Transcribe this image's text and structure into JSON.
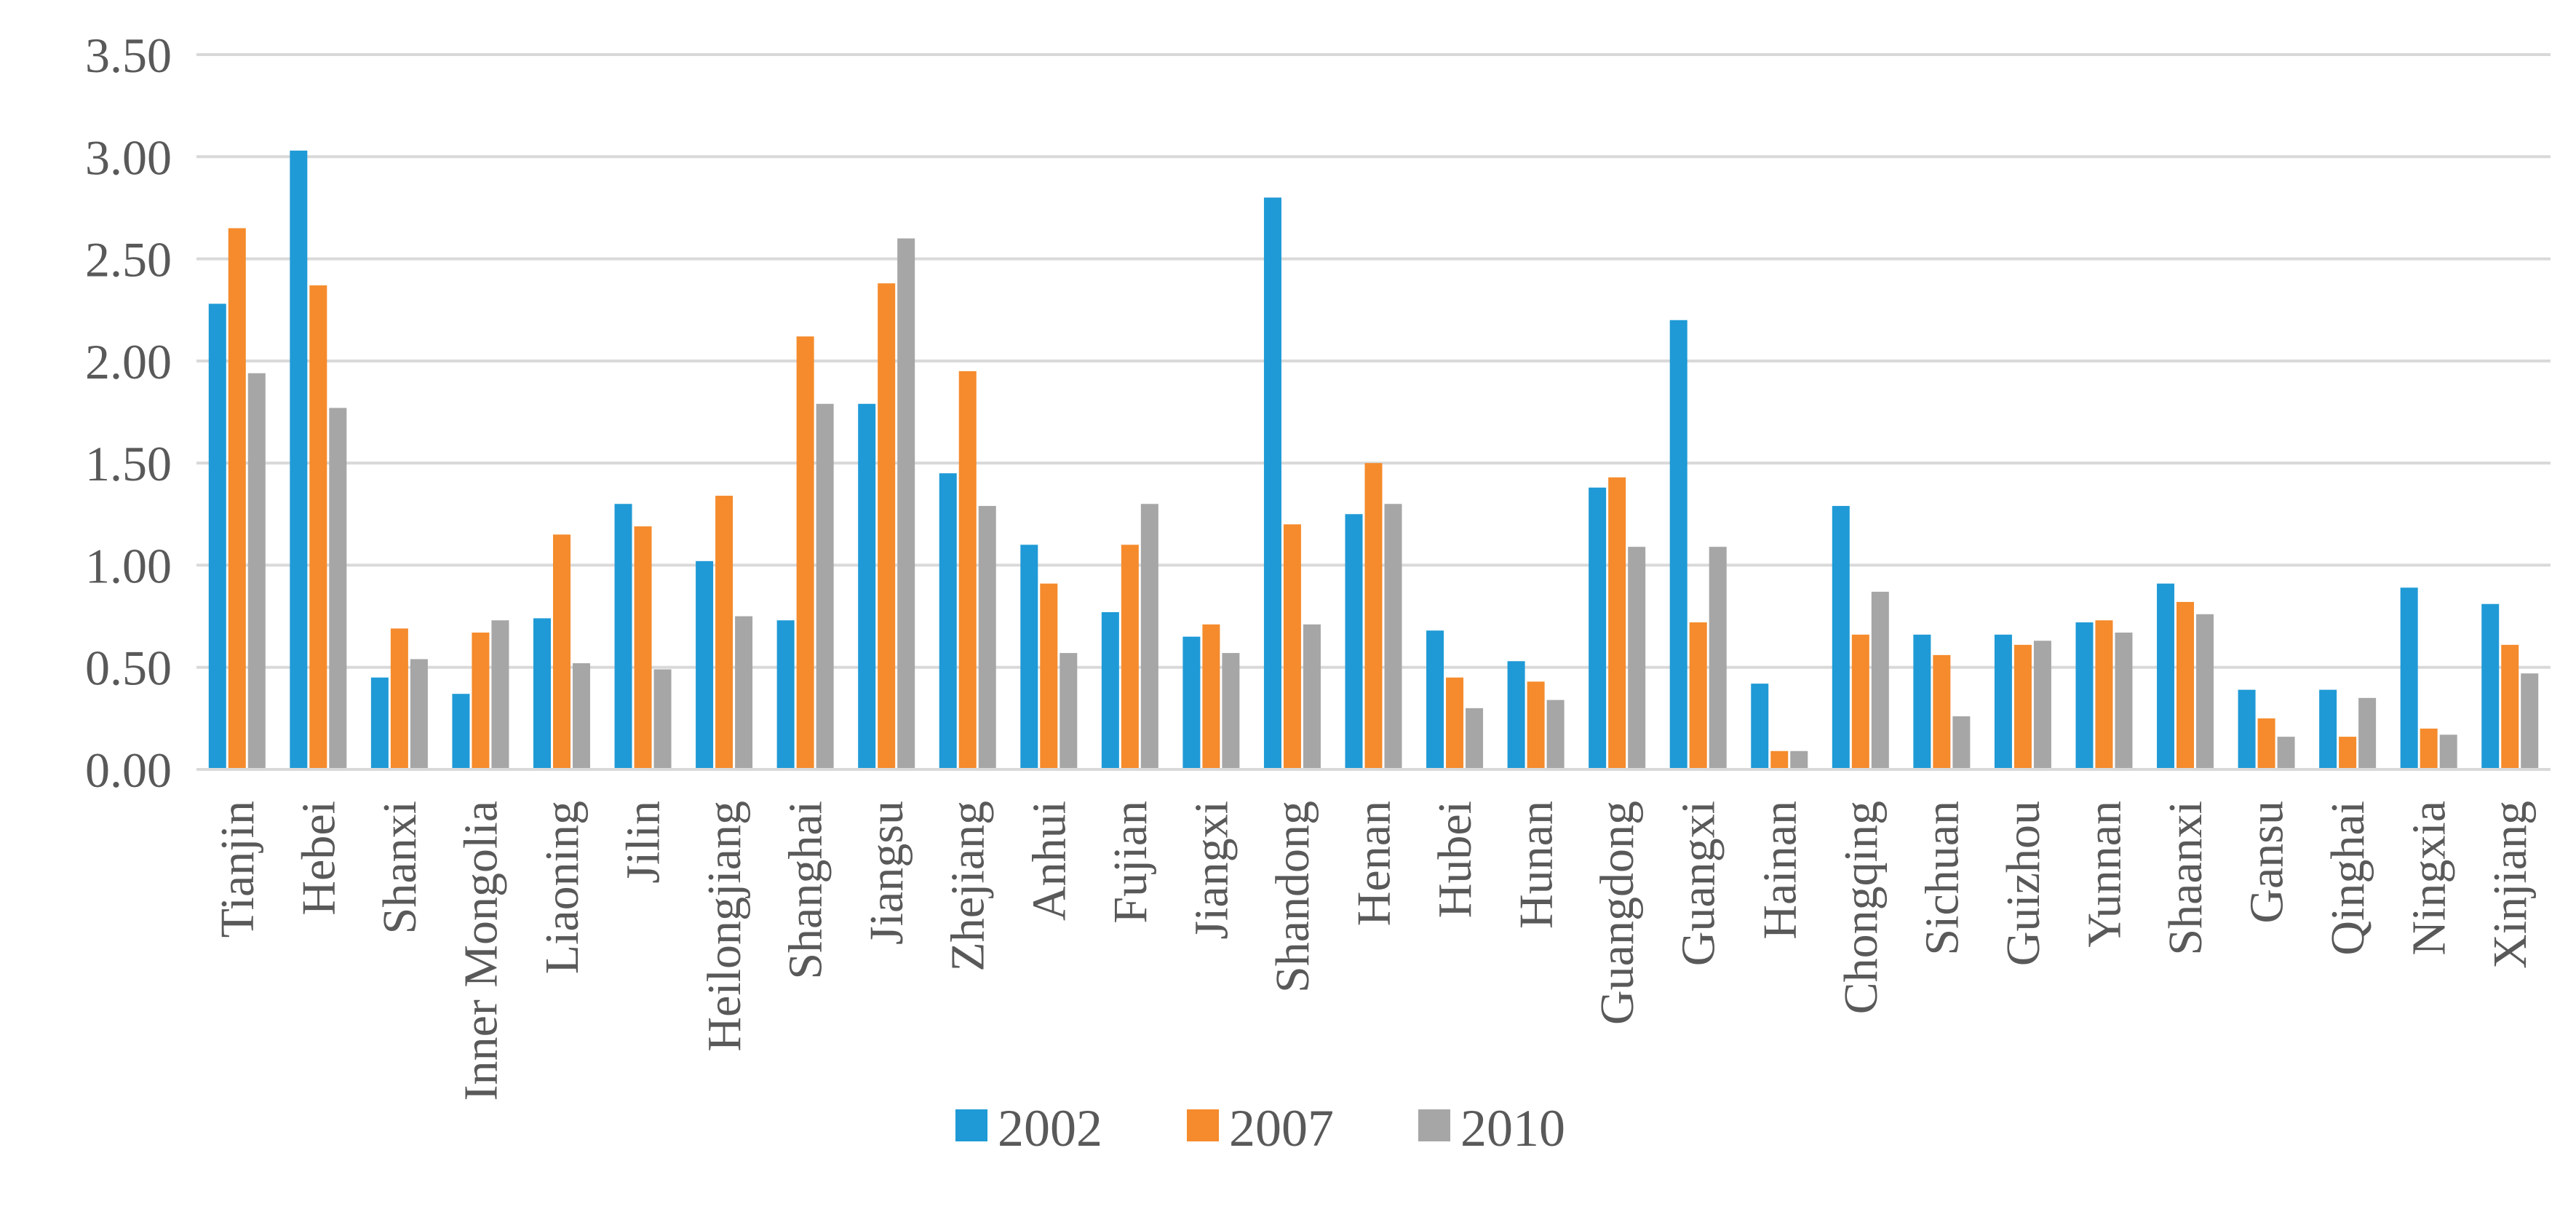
{
  "chart_data": {
    "type": "bar",
    "title": "",
    "xlabel": "",
    "ylabel": "",
    "ylim": [
      0,
      3.5
    ],
    "yticks": [
      "0.00",
      "0.50",
      "1.00",
      "1.50",
      "2.00",
      "2.50",
      "3.00",
      "3.50"
    ],
    "grid": true,
    "legend_position": "bottom",
    "categories": [
      "Tianjin",
      "Hebei",
      "Shanxi",
      "Inner Mongolia",
      "Liaoning",
      "Jilin",
      "Heilongjiang",
      "Shanghai",
      "Jiangsu",
      "Zhejiang",
      "Anhui",
      "Fujian",
      "Jiangxi",
      "Shandong",
      "Henan",
      "Hubei",
      "Hunan",
      "Guangdong",
      "Guangxi",
      "Hainan",
      "Chongqing",
      "Sichuan",
      "Guizhou",
      "Yunnan",
      "Shaanxi",
      "Gansu",
      "Qinghai",
      "Ningxia",
      "Xinjiang"
    ],
    "series": [
      {
        "name": "2002",
        "color": "#1f9ad6",
        "values": [
          2.28,
          3.03,
          0.45,
          0.37,
          0.74,
          1.3,
          1.02,
          0.73,
          1.79,
          1.45,
          1.1,
          0.77,
          0.65,
          2.8,
          1.25,
          0.68,
          0.53,
          1.38,
          2.2,
          0.42,
          1.29,
          0.66,
          0.66,
          0.72,
          0.91,
          0.39,
          0.39,
          0.89,
          0.81
        ]
      },
      {
        "name": "2007",
        "color": "#f58b2c",
        "values": [
          2.65,
          2.37,
          0.69,
          0.67,
          1.15,
          1.19,
          1.34,
          2.12,
          2.38,
          1.95,
          0.91,
          1.1,
          0.71,
          1.2,
          1.5,
          0.45,
          0.43,
          1.43,
          0.72,
          0.09,
          0.66,
          0.56,
          0.61,
          0.73,
          0.82,
          0.25,
          0.16,
          0.2,
          0.61
        ]
      },
      {
        "name": "2010",
        "color": "#a6a6a6",
        "values": [
          1.94,
          1.77,
          0.54,
          0.73,
          0.52,
          0.49,
          0.75,
          1.79,
          2.6,
          1.29,
          0.57,
          1.3,
          0.57,
          0.71,
          1.3,
          0.3,
          0.34,
          1.09,
          1.09,
          0.09,
          0.87,
          0.26,
          0.63,
          0.67,
          0.76,
          0.16,
          0.35,
          0.17,
          0.47
        ]
      }
    ]
  }
}
